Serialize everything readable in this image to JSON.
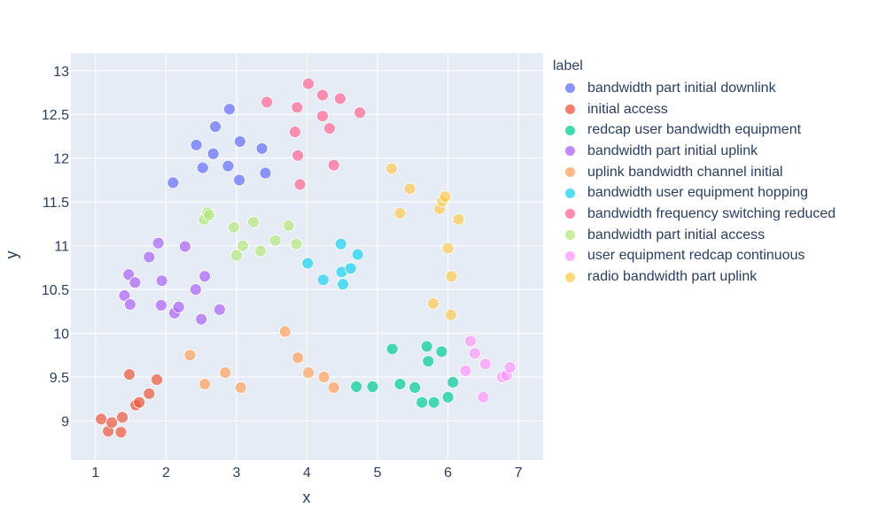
{
  "chart_data": {
    "type": "scatter",
    "xlabel": "x",
    "ylabel": "y",
    "xlim": [
      0.65,
      7.35
    ],
    "ylim": [
      8.55,
      13.2
    ],
    "xticks": [
      1,
      2,
      3,
      4,
      5,
      6,
      7
    ],
    "yticks": [
      9,
      9.5,
      10,
      10.5,
      11,
      11.5,
      12,
      12.5,
      13
    ],
    "grid": true,
    "legend_placement": "right",
    "legend_title": "label",
    "series": [
      {
        "name": "bandwidth part initial downlink",
        "color": "#636efa",
        "points": [
          [
            2.1,
            11.72
          ],
          [
            2.43,
            12.15
          ],
          [
            2.52,
            11.89
          ],
          [
            2.67,
            12.05
          ],
          [
            2.7,
            12.36
          ],
          [
            2.88,
            11.91
          ],
          [
            2.9,
            12.56
          ],
          [
            3.04,
            11.75
          ],
          [
            3.05,
            12.19
          ],
          [
            3.36,
            12.11
          ],
          [
            3.41,
            11.83
          ]
        ]
      },
      {
        "name": "initial access",
        "color": "#EF553B",
        "points": [
          [
            1.08,
            9.02
          ],
          [
            1.18,
            8.88
          ],
          [
            1.23,
            8.98
          ],
          [
            1.36,
            8.87
          ],
          [
            1.38,
            9.04
          ],
          [
            1.48,
            9.53
          ],
          [
            1.57,
            9.18
          ],
          [
            1.62,
            9.21
          ],
          [
            1.76,
            9.31
          ],
          [
            1.87,
            9.47
          ]
        ]
      },
      {
        "name": "redcap user bandwidth equipment",
        "color": "#00cc96",
        "points": [
          [
            4.7,
            9.39
          ],
          [
            4.93,
            9.39
          ],
          [
            5.21,
            9.82
          ],
          [
            5.32,
            9.42
          ],
          [
            5.53,
            9.38
          ],
          [
            5.63,
            9.21
          ],
          [
            5.7,
            9.85
          ],
          [
            5.72,
            9.68
          ],
          [
            5.8,
            9.21
          ],
          [
            5.91,
            9.79
          ],
          [
            6.0,
            9.27
          ],
          [
            6.07,
            9.44
          ]
        ]
      },
      {
        "name": "bandwidth part initial uplink",
        "color": "#ab63fa",
        "points": [
          [
            1.41,
            10.43
          ],
          [
            1.47,
            10.67
          ],
          [
            1.49,
            10.33
          ],
          [
            1.56,
            10.58
          ],
          [
            1.76,
            10.87
          ],
          [
            1.89,
            11.03
          ],
          [
            1.93,
            10.32
          ],
          [
            1.94,
            10.6
          ],
          [
            2.12,
            10.23
          ],
          [
            2.18,
            10.3
          ],
          [
            2.27,
            10.99
          ],
          [
            2.42,
            10.5
          ],
          [
            2.5,
            10.16
          ],
          [
            2.55,
            10.65
          ],
          [
            2.76,
            10.27
          ]
        ]
      },
      {
        "name": "uplink bandwidth channel initial",
        "color": "#FFA15A",
        "points": [
          [
            2.34,
            9.75
          ],
          [
            2.55,
            9.42
          ],
          [
            2.84,
            9.55
          ],
          [
            3.06,
            9.38
          ],
          [
            3.69,
            10.02
          ],
          [
            3.87,
            9.72
          ],
          [
            4.02,
            9.55
          ],
          [
            4.24,
            9.5
          ],
          [
            4.38,
            9.38
          ]
        ]
      },
      {
        "name": "bandwidth user equipment hopping",
        "color": "#19d3f3",
        "points": [
          [
            4.01,
            10.8
          ],
          [
            4.23,
            10.61
          ],
          [
            4.48,
            11.02
          ],
          [
            4.49,
            10.7
          ],
          [
            4.51,
            10.56
          ],
          [
            4.62,
            10.74
          ],
          [
            4.72,
            10.9
          ]
        ]
      },
      {
        "name": "bandwidth frequency switching reduced",
        "color": "#FF6692",
        "points": [
          [
            3.43,
            12.64
          ],
          [
            3.83,
            12.3
          ],
          [
            3.86,
            12.58
          ],
          [
            3.87,
            12.03
          ],
          [
            3.9,
            11.7
          ],
          [
            4.02,
            12.85
          ],
          [
            4.22,
            12.72
          ],
          [
            4.22,
            12.48
          ],
          [
            4.32,
            12.34
          ],
          [
            4.38,
            11.92
          ],
          [
            4.47,
            12.68
          ],
          [
            4.75,
            12.52
          ]
        ]
      },
      {
        "name": "bandwidth part initial access",
        "color": "#B6E880",
        "points": [
          [
            2.54,
            11.3
          ],
          [
            2.59,
            11.38
          ],
          [
            2.61,
            11.35
          ],
          [
            2.96,
            11.21
          ],
          [
            3.0,
            10.89
          ],
          [
            3.09,
            11.0
          ],
          [
            3.24,
            11.27
          ],
          [
            3.34,
            10.94
          ],
          [
            3.55,
            11.06
          ],
          [
            3.74,
            11.23
          ],
          [
            3.85,
            11.02
          ]
        ]
      },
      {
        "name": "user equipment redcap continuous",
        "color": "#FF97FF",
        "points": [
          [
            6.25,
            9.57
          ],
          [
            6.32,
            9.91
          ],
          [
            6.38,
            9.77
          ],
          [
            6.5,
            9.27
          ],
          [
            6.53,
            9.65
          ],
          [
            6.77,
            9.5
          ],
          [
            6.83,
            9.52
          ],
          [
            6.88,
            9.61
          ]
        ]
      },
      {
        "name": "radio bandwidth part uplink",
        "color": "#FECB52",
        "points": [
          [
            5.2,
            11.88
          ],
          [
            5.32,
            11.37
          ],
          [
            5.46,
            11.65
          ],
          [
            5.79,
            10.34
          ],
          [
            5.88,
            11.42
          ],
          [
            5.92,
            11.51
          ],
          [
            5.96,
            11.56
          ],
          [
            6.0,
            10.97
          ],
          [
            6.04,
            10.21
          ],
          [
            6.05,
            10.65
          ],
          [
            6.15,
            11.3
          ]
        ]
      }
    ]
  }
}
